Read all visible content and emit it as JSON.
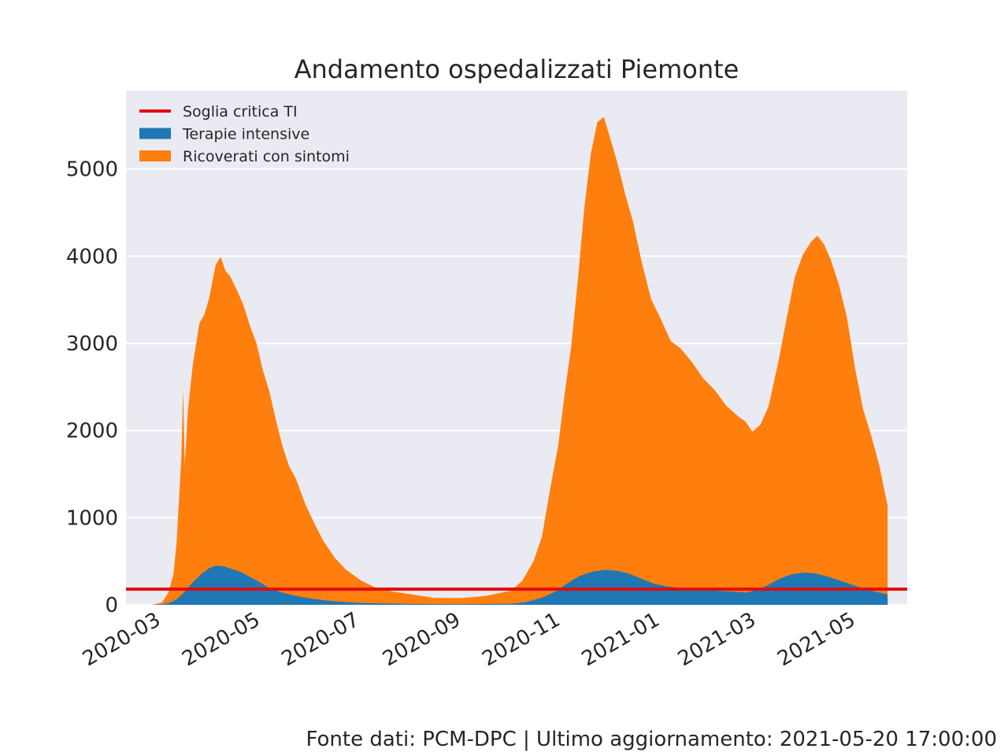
{
  "chart_data": {
    "type": "area",
    "title": "Andamento ospedalizzati Piemonte",
    "xlabel": "",
    "ylabel": "",
    "x_ticks": [
      "2020-03",
      "2020-05",
      "2020-07",
      "2020-09",
      "2020-11",
      "2021-01",
      "2021-03",
      "2021-05"
    ],
    "y_ticks": [
      0,
      1000,
      2000,
      3000,
      4000,
      5000
    ],
    "ylim": [
      0,
      5900
    ],
    "xlim": [
      "2020-02-08",
      "2021-06-01"
    ],
    "stacked": true,
    "grid": true,
    "legend_position": "top-left",
    "series": [
      {
        "name": "Terapie intensive",
        "color": "#1f77b4",
        "points": [
          [
            "2020-02-24",
            0
          ],
          [
            "2020-03-01",
            5
          ],
          [
            "2020-03-05",
            20
          ],
          [
            "2020-03-10",
            60
          ],
          [
            "2020-03-15",
            150
          ],
          [
            "2020-03-20",
            260
          ],
          [
            "2020-03-25",
            350
          ],
          [
            "2020-03-30",
            420
          ],
          [
            "2020-04-03",
            450
          ],
          [
            "2020-04-08",
            440
          ],
          [
            "2020-04-13",
            410
          ],
          [
            "2020-04-18",
            380
          ],
          [
            "2020-04-23",
            330
          ],
          [
            "2020-04-28",
            280
          ],
          [
            "2020-05-05",
            200
          ],
          [
            "2020-05-12",
            150
          ],
          [
            "2020-05-20",
            110
          ],
          [
            "2020-06-01",
            70
          ],
          [
            "2020-06-15",
            40
          ],
          [
            "2020-07-01",
            20
          ],
          [
            "2020-08-01",
            10
          ],
          [
            "2020-09-01",
            8
          ],
          [
            "2020-10-01",
            12
          ],
          [
            "2020-10-10",
            30
          ],
          [
            "2020-10-20",
            80
          ],
          [
            "2020-10-28",
            150
          ],
          [
            "2020-11-05",
            250
          ],
          [
            "2020-11-12",
            330
          ],
          [
            "2020-11-20",
            380
          ],
          [
            "2020-11-28",
            400
          ],
          [
            "2020-12-05",
            390
          ],
          [
            "2020-12-12",
            360
          ],
          [
            "2020-12-20",
            300
          ],
          [
            "2020-12-28",
            240
          ],
          [
            "2021-01-05",
            210
          ],
          [
            "2021-01-15",
            190
          ],
          [
            "2021-01-25",
            180
          ],
          [
            "2021-02-05",
            160
          ],
          [
            "2021-02-15",
            150
          ],
          [
            "2021-02-22",
            140
          ],
          [
            "2021-03-01",
            170
          ],
          [
            "2021-03-08",
            230
          ],
          [
            "2021-03-15",
            300
          ],
          [
            "2021-03-22",
            350
          ],
          [
            "2021-03-30",
            370
          ],
          [
            "2021-04-06",
            360
          ],
          [
            "2021-04-14",
            320
          ],
          [
            "2021-04-22",
            270
          ],
          [
            "2021-04-30",
            220
          ],
          [
            "2021-05-08",
            170
          ],
          [
            "2021-05-15",
            140
          ],
          [
            "2021-05-20",
            120
          ]
        ]
      },
      {
        "name": "Ricoverati con sintomi",
        "color": "#ff7f0e",
        "points": [
          [
            "2020-02-24",
            0
          ],
          [
            "2020-03-01",
            20
          ],
          [
            "2020-03-05",
            120
          ],
          [
            "2020-03-08",
            300
          ],
          [
            "2020-03-10",
            650
          ],
          [
            "2020-03-13",
            1600
          ],
          [
            "2020-03-14",
            2350
          ],
          [
            "2020-03-15",
            1450
          ],
          [
            "2020-03-17",
            2050
          ],
          [
            "2020-03-20",
            2500
          ],
          [
            "2020-03-24",
            2900
          ],
          [
            "2020-03-27",
            2950
          ],
          [
            "2020-03-30",
            3100
          ],
          [
            "2020-04-03",
            3450
          ],
          [
            "2020-04-06",
            3550
          ],
          [
            "2020-04-09",
            3400
          ],
          [
            "2020-04-12",
            3350
          ],
          [
            "2020-04-16",
            3220
          ],
          [
            "2020-04-20",
            3080
          ],
          [
            "2020-04-24",
            2880
          ],
          [
            "2020-04-28",
            2720
          ],
          [
            "2020-05-02",
            2450
          ],
          [
            "2020-05-06",
            2250
          ],
          [
            "2020-05-10",
            1950
          ],
          [
            "2020-05-14",
            1680
          ],
          [
            "2020-05-18",
            1470
          ],
          [
            "2020-05-22",
            1350
          ],
          [
            "2020-05-28",
            1070
          ],
          [
            "2020-06-03",
            850
          ],
          [
            "2020-06-08",
            680
          ],
          [
            "2020-06-15",
            500
          ],
          [
            "2020-06-22",
            370
          ],
          [
            "2020-07-01",
            260
          ],
          [
            "2020-07-10",
            180
          ],
          [
            "2020-07-20",
            140
          ],
          [
            "2020-08-01",
            110
          ],
          [
            "2020-08-15",
            70
          ],
          [
            "2020-09-01",
            70
          ],
          [
            "2020-09-15",
            90
          ],
          [
            "2020-10-01",
            150
          ],
          [
            "2020-10-08",
            250
          ],
          [
            "2020-10-15",
            450
          ],
          [
            "2020-10-20",
            700
          ],
          [
            "2020-10-25",
            1200
          ],
          [
            "2020-10-30",
            1650
          ],
          [
            "2020-11-03",
            2200
          ],
          [
            "2020-11-07",
            2700
          ],
          [
            "2020-11-11",
            3400
          ],
          [
            "2020-11-15",
            4200
          ],
          [
            "2020-11-19",
            4800
          ],
          [
            "2020-11-23",
            5150
          ],
          [
            "2020-11-27",
            5200
          ],
          [
            "2020-12-01",
            4950
          ],
          [
            "2020-12-05",
            4700
          ],
          [
            "2020-12-10",
            4350
          ],
          [
            "2020-12-15",
            4050
          ],
          [
            "2020-12-20",
            3650
          ],
          [
            "2020-12-26",
            3250
          ],
          [
            "2021-01-01",
            3050
          ],
          [
            "2021-01-07",
            2820
          ],
          [
            "2021-01-13",
            2750
          ],
          [
            "2021-01-20",
            2600
          ],
          [
            "2021-01-27",
            2420
          ],
          [
            "2021-02-03",
            2300
          ],
          [
            "2021-02-10",
            2130
          ],
          [
            "2021-02-17",
            2020
          ],
          [
            "2021-02-22",
            1960
          ],
          [
            "2021-02-26",
            1830
          ],
          [
            "2021-03-03",
            1880
          ],
          [
            "2021-03-08",
            2050
          ],
          [
            "2021-03-14",
            2500
          ],
          [
            "2021-03-19",
            2950
          ],
          [
            "2021-03-24",
            3400
          ],
          [
            "2021-03-29",
            3650
          ],
          [
            "2021-04-03",
            3800
          ],
          [
            "2021-04-07",
            3880
          ],
          [
            "2021-04-11",
            3800
          ],
          [
            "2021-04-15",
            3650
          ],
          [
            "2021-04-20",
            3400
          ],
          [
            "2021-04-25",
            3050
          ],
          [
            "2021-04-30",
            2500
          ],
          [
            "2021-05-05",
            2050
          ],
          [
            "2021-05-10",
            1780
          ],
          [
            "2021-05-15",
            1450
          ],
          [
            "2021-05-20",
            1020
          ]
        ]
      }
    ],
    "reference_line": {
      "name": "Soglia critica TI",
      "value": 180,
      "color": "#e30c0c"
    }
  },
  "footer": "Fonte dati: PCM-DPC | Ultimo aggiornamento: 2021-05-20 17:00:00"
}
